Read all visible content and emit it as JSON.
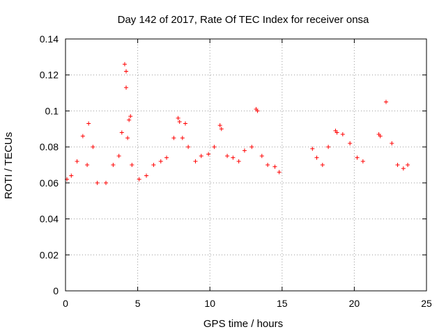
{
  "chart_data": {
    "type": "scatter",
    "title": "Day 142 of 2017, Rate Of TEC Index for receiver onsa",
    "xlabel": "GPS time / hours",
    "ylabel": "ROTI / TECUs",
    "xlim": [
      0,
      25
    ],
    "ylim": [
      0,
      0.14
    ],
    "x_ticks": [
      0,
      5,
      10,
      15,
      20,
      25
    ],
    "y_ticks": [
      0,
      0.02,
      0.04,
      0.06,
      0.08,
      0.1,
      0.12,
      0.14
    ],
    "x_tick_labels": [
      "0",
      "5",
      "10",
      "15",
      "20",
      "25"
    ],
    "y_tick_labels": [
      "0",
      "0.02",
      "0.04",
      "0.06",
      "0.08",
      "0.1",
      "0.12",
      "0.14"
    ],
    "grid": true,
    "marker": "plus",
    "marker_color": "#ff0000",
    "data_gap_hours": [
      15.0,
      17.0
    ],
    "series": [
      {
        "x": [
          0.1,
          0.4,
          0.8,
          1.2,
          1.5,
          1.6,
          1.9,
          2.2,
          2.8,
          3.3,
          3.7,
          3.9,
          4.1,
          4.2,
          4.2,
          4.3,
          4.4,
          4.5,
          4.6,
          5.1,
          5.6,
          6.1,
          6.6,
          7.0,
          7.5,
          7.8,
          7.9,
          8.1,
          8.3,
          8.5,
          9.0,
          9.4,
          9.9,
          10.3,
          10.7,
          10.8,
          11.2,
          11.6,
          12.0,
          12.4,
          12.9,
          13.2,
          13.3,
          13.6,
          14.0,
          14.5,
          14.8,
          17.1,
          17.4,
          17.8,
          18.2,
          18.7,
          18.8,
          19.2,
          19.7,
          20.2,
          20.6,
          21.7,
          21.8,
          22.2,
          22.6,
          23.0,
          23.4,
          23.7
        ],
        "y": [
          0.062,
          0.064,
          0.072,
          0.086,
          0.07,
          0.093,
          0.08,
          0.06,
          0.06,
          0.07,
          0.075,
          0.088,
          0.126,
          0.122,
          0.113,
          0.085,
          0.095,
          0.097,
          0.07,
          0.062,
          0.064,
          0.07,
          0.072,
          0.074,
          0.085,
          0.096,
          0.094,
          0.085,
          0.093,
          0.08,
          0.072,
          0.075,
          0.076,
          0.08,
          0.092,
          0.09,
          0.075,
          0.074,
          0.072,
          0.078,
          0.08,
          0.101,
          0.1,
          0.075,
          0.07,
          0.069,
          0.066,
          0.079,
          0.074,
          0.07,
          0.08,
          0.089,
          0.088,
          0.087,
          0.082,
          0.074,
          0.072,
          0.087,
          0.086,
          0.105,
          0.082,
          0.07,
          0.068,
          0.07
        ]
      }
    ]
  }
}
